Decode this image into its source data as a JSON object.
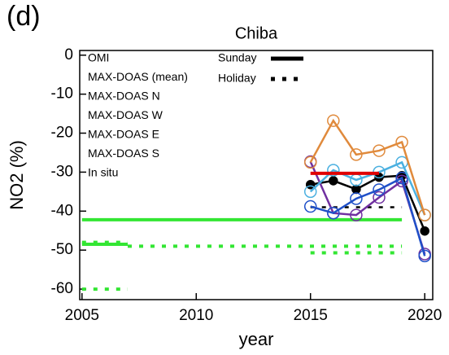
{
  "chart_data": {
    "type": "line",
    "panel_label": "(d)",
    "title": "Chiba",
    "x_label": "year",
    "y_label": "NO2 (%)",
    "xlim": [
      2004.9,
      2020.35
    ],
    "ylim": [
      -62.7,
      1.2
    ],
    "xticks": [
      2005,
      2010,
      2015,
      2020
    ],
    "yticks": [
      0,
      -10,
      -20,
      -30,
      -40,
      -50,
      -60
    ],
    "styles": [
      {
        "name": "Sunday",
        "dash": "solid"
      },
      {
        "name": "Holiday",
        "dash": "dotted"
      }
    ],
    "series": [
      {
        "name": "OMI",
        "color": "#33e633",
        "sunday": {
          "x": [
            2005,
            2007,
            null,
            2005,
            2019
          ],
          "values": [
            -48.5,
            -48.5,
            null,
            -42.2,
            -42.2
          ]
        },
        "holiday": {
          "x": [
            2005,
            2007,
            null,
            2007,
            2019,
            null,
            2015,
            2019,
            null,
            2005,
            2007
          ],
          "values": [
            -48,
            -48,
            null,
            -49,
            -49,
            null,
            -50.7,
            -50.7,
            null,
            -60,
            -60
          ]
        }
      },
      {
        "name": "MAX-DOAS (mean)",
        "color": "#000000",
        "markers": "filled",
        "sunday": {
          "x": [
            2015,
            2016,
            2017,
            2018,
            2019,
            2020
          ],
          "values": [
            -33.2,
            -32.2,
            -34.4,
            -31.3,
            -30.9,
            -45.1
          ]
        },
        "holiday": {
          "x": [
            2015,
            2019
          ],
          "values": [
            -39,
            -39
          ]
        }
      },
      {
        "name": "MAX-DOAS N",
        "color": "#7030a0",
        "markers": "open",
        "sunday": {
          "x": [
            2015,
            2016,
            2017,
            2018,
            2019,
            2020
          ],
          "values": [
            -27.3,
            -40.5,
            -41,
            -36.5,
            -32.3,
            -51
          ]
        }
      },
      {
        "name": "MAX-DOAS W",
        "color": "#2050c8",
        "markers": "open",
        "sunday": {
          "x": [
            2015,
            2016,
            2017,
            2018,
            2019,
            2020
          ],
          "values": [
            -38.8,
            -40.5,
            -36.8,
            -34.5,
            -31.5,
            -51.5
          ]
        }
      },
      {
        "name": "MAX-DOAS E",
        "color": "#4bb0e0",
        "markers": "open",
        "sunday": {
          "x": [
            2015,
            2016,
            2017,
            2018,
            2019,
            2020
          ],
          "values": [
            -35,
            -29.5,
            -32,
            -30,
            -27.5,
            -41
          ]
        }
      },
      {
        "name": "MAX-DOAS S",
        "color": "#e08a3c",
        "markers": "open",
        "sunday": {
          "x": [
            2015,
            2016,
            2017,
            2018,
            2019,
            2020
          ],
          "values": [
            -27.5,
            -16.8,
            -25.5,
            -24.5,
            -22.3,
            -41
          ]
        }
      },
      {
        "name": "In situ",
        "color": "#e00000",
        "sunday": {
          "x": [
            2015,
            2018
          ],
          "values": [
            -30.3,
            -30.3
          ]
        }
      }
    ]
  }
}
